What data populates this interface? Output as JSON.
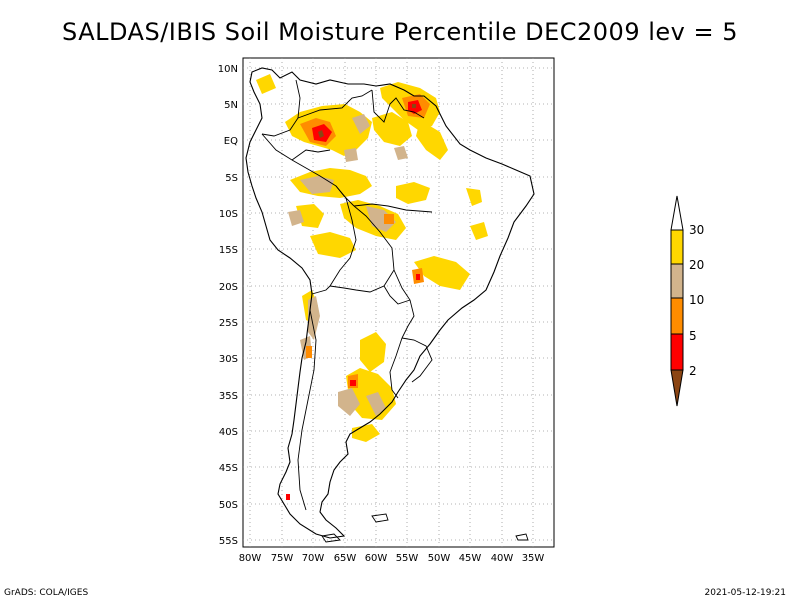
{
  "title": "SALDAS/IBIS Soil Moisture Percentile DEC2009 lev = 5",
  "map": {
    "lat_labels": [
      "10N",
      "5N",
      "EQ",
      "5S",
      "10S",
      "15S",
      "20S",
      "25S",
      "30S",
      "35S",
      "40S",
      "45S",
      "50S",
      "55S"
    ],
    "lon_labels": [
      "80W",
      "75W",
      "70W",
      "65W",
      "60W",
      "55W",
      "50W",
      "45W",
      "40W",
      "35W"
    ],
    "grid": true
  },
  "legend": {
    "labels": [
      "2",
      "5",
      "10",
      "20",
      "30"
    ],
    "colors": [
      "#8b4513",
      "#ff0000",
      "#ff8c00",
      "#d2b48c",
      "#ffd700",
      "#ffffff"
    ]
  },
  "footer": {
    "left": "GrADS: COLA/IGES",
    "right": "2021-05-12-19:21"
  }
}
